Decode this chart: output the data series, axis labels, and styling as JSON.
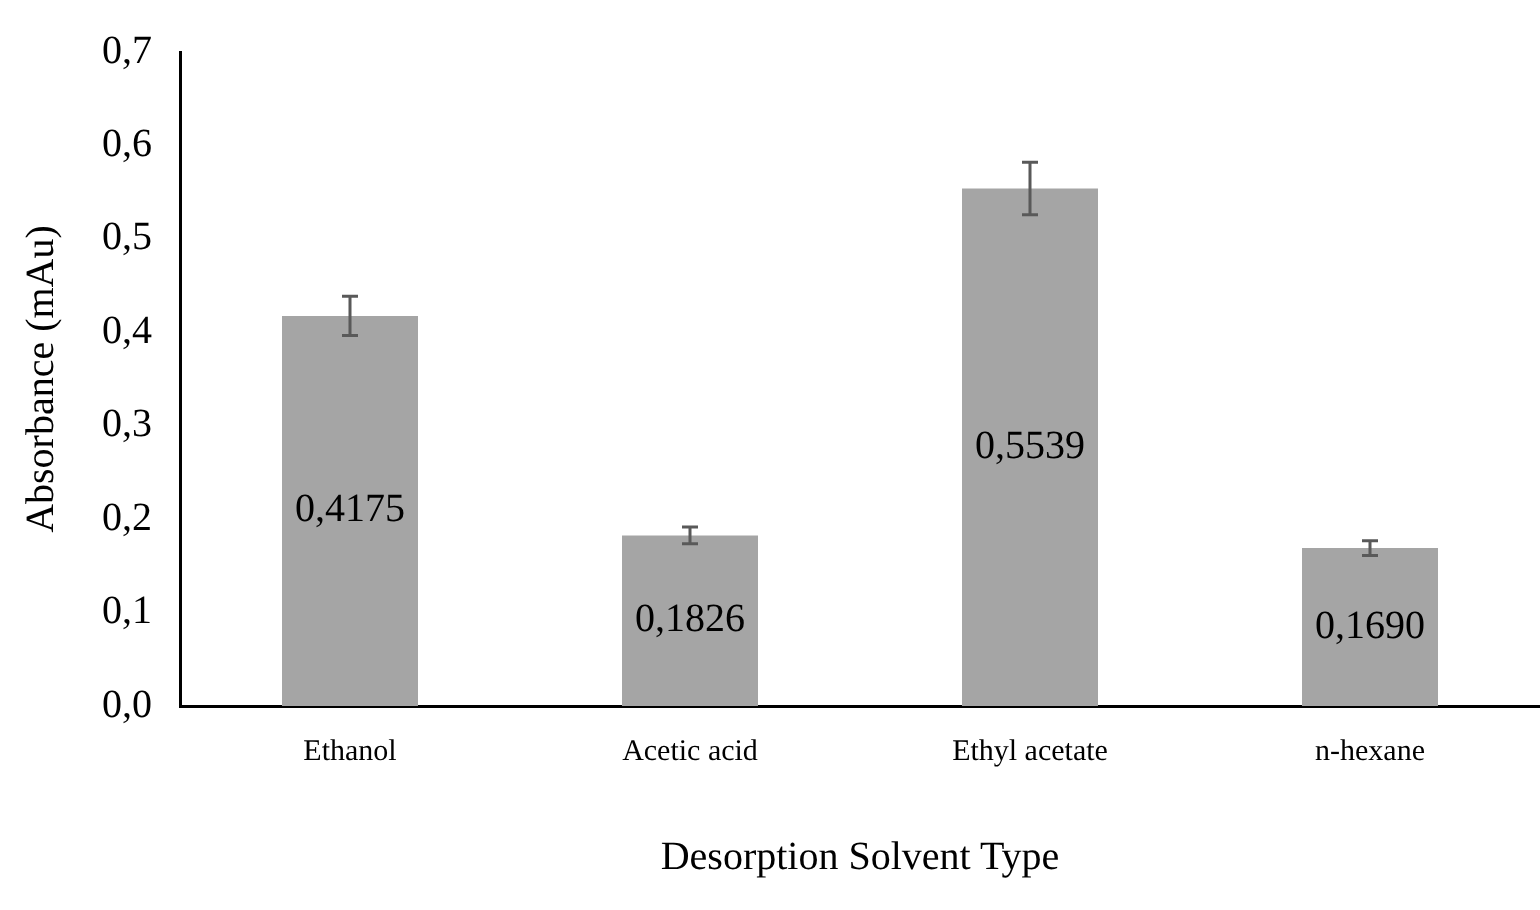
{
  "chart_data": {
    "type": "bar",
    "xlabel": "Desorption Solvent Type",
    "ylabel": "Absorbance (mAu)",
    "categories": [
      "Ethanol",
      "Acetic acid",
      "Ethyl acetate",
      "n-hexane"
    ],
    "values": [
      0.4175,
      0.1826,
      0.5539,
      0.169
    ],
    "value_labels": [
      "0,4175",
      "0,1826",
      "0,5539",
      "0,1690"
    ],
    "errors": [
      0.021,
      0.009,
      0.028,
      0.008
    ],
    "color": "#a5a5a5",
    "ylim": [
      0,
      0.7
    ],
    "yticks": [
      {
        "value": 0,
        "label": "0,0"
      },
      {
        "value": 0.1,
        "label": "0,1"
      },
      {
        "value": 0.2,
        "label": "0,2"
      },
      {
        "value": 0.3,
        "label": "0,3"
      },
      {
        "value": 0.4,
        "label": "0,4"
      },
      {
        "value": 0.5,
        "label": "0,5"
      },
      {
        "value": 0.6,
        "label": "0,6"
      },
      {
        "value": 0.7,
        "label": "0,7"
      }
    ],
    "grid": false,
    "legend": false
  }
}
